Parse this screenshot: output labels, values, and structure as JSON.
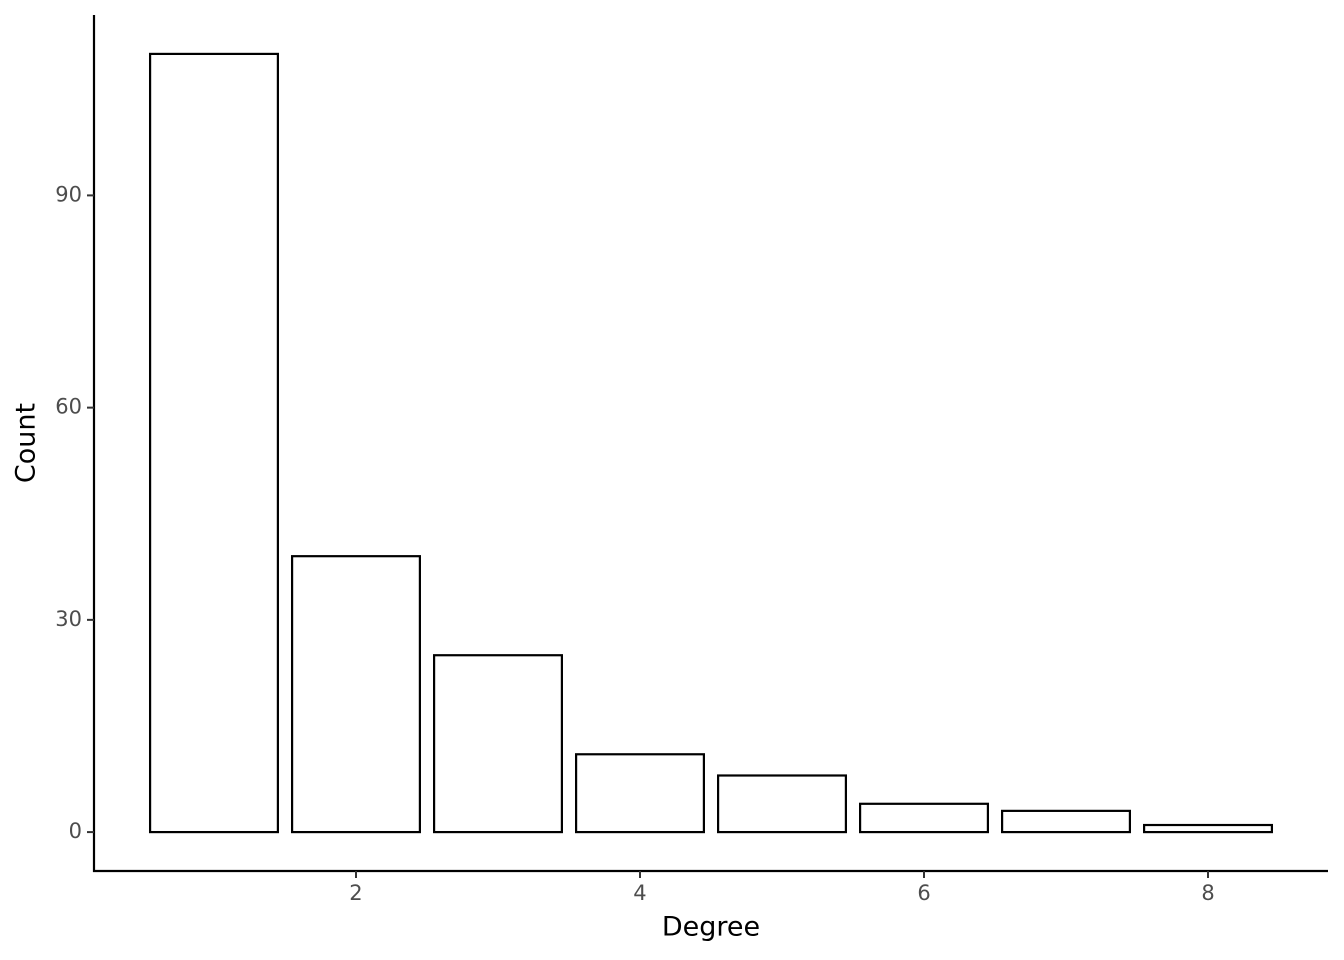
{
  "chart_data": {
    "type": "bar",
    "x_label": "Degree",
    "y_label": "Count",
    "x": [
      1,
      2,
      3,
      4,
      5,
      6,
      7,
      8
    ],
    "values": [
      110,
      39,
      25,
      11,
      8,
      4,
      3,
      1
    ],
    "color": "#ffffff",
    "edge_color": "#000000",
    "xlim": [
      0.155,
      8.845
    ],
    "xticks": [
      2,
      4,
      6,
      8
    ],
    "ylim": [
      -5.5,
      115.5
    ],
    "yticks": [
      0,
      30,
      60,
      90
    ],
    "grid": false
  }
}
